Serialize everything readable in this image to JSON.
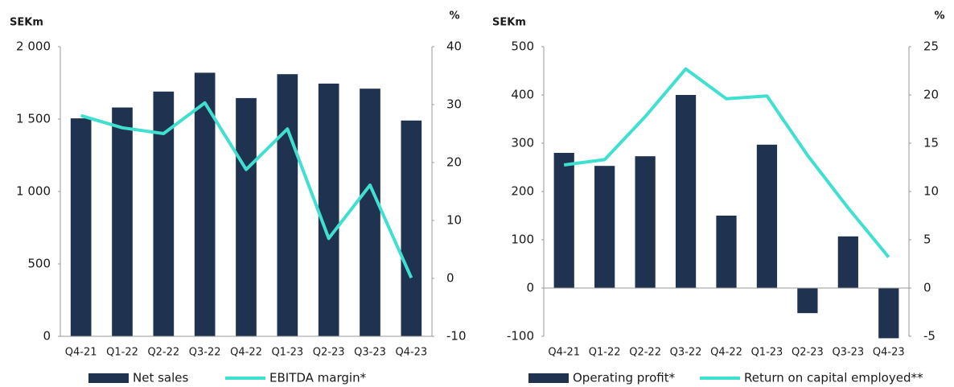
{
  "chart_data": [
    {
      "type": "bar",
      "y_label": "SEKm",
      "y2_label": "%",
      "categories": [
        "Q4-21",
        "Q1-22",
        "Q2-22",
        "Q3-22",
        "Q4-22",
        "Q1-23",
        "Q2-23",
        "Q3-23",
        "Q4-23"
      ],
      "series": [
        {
          "name": "Net sales",
          "type": "bar",
          "color": "#1f3250",
          "values": [
            1505,
            1580,
            1690,
            1820,
            1645,
            1810,
            1745,
            1710,
            1490
          ]
        },
        {
          "name": "EBITDA margin*",
          "type": "line",
          "axis": "y2",
          "color": "#3fe0d0",
          "values": [
            28.1,
            26,
            25,
            30.3,
            18.8,
            25.8,
            6.9,
            16.1,
            0.1
          ]
        }
      ],
      "ylim": [
        0,
        2000
      ],
      "yticks": [
        0,
        500,
        {
          "value": 1000,
          "label": "1 000"
        },
        {
          "value": 1500,
          "label": "1 500"
        },
        {
          "value": 2000,
          "label": "2 000"
        }
      ],
      "y2lim": [
        -10,
        40
      ],
      "y2ticks": [
        -10,
        0,
        10,
        20,
        30,
        40
      ],
      "grid": false,
      "legend": "bottom"
    },
    {
      "type": "bar",
      "y_label": "SEKm",
      "y2_label": "%",
      "categories": [
        "Q4-21",
        "Q1-22",
        "Q2-22",
        "Q3-22",
        "Q4-22",
        "Q1-23",
        "Q2-23",
        "Q3-23",
        "Q4-23"
      ],
      "series": [
        {
          "name": "Operating profit*",
          "type": "bar",
          "color": "#1f3250",
          "values": [
            280,
            253,
            273,
            400,
            150,
            297,
            -52,
            107,
            -104
          ]
        },
        {
          "name": "Return on capital employed**",
          "type": "line",
          "axis": "y2",
          "color": "#3fe0d0",
          "values": [
            12.75,
            13.3,
            17.75,
            22.7,
            19.6,
            19.9,
            13.75,
            8.3,
            3.2
          ]
        }
      ],
      "ylim": [
        -100,
        500
      ],
      "yticks": [
        -100,
        0,
        100,
        200,
        300,
        400,
        500
      ],
      "y2lim": [
        -5,
        25
      ],
      "y2ticks": [
        -5,
        0,
        5,
        10,
        15,
        20,
        25
      ],
      "grid": false,
      "legend": "bottom"
    }
  ]
}
